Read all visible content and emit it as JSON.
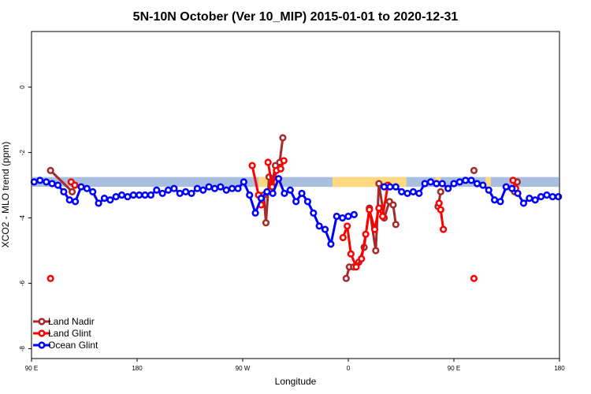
{
  "chart_data": {
    "type": "line",
    "title": "5N-10N October (Ver 10_MIP)   2015-01-01 to 2020-12-31",
    "xlabel": "Longitude",
    "ylabel": "XCO2 - MLO trend (ppm)",
    "xlim": [
      0,
      100
    ],
    "ylim": [
      -8.3,
      1.7
    ],
    "x_ticks": [
      {
        "pos": 0,
        "label": "90 E"
      },
      {
        "pos": 20,
        "label": "180"
      },
      {
        "pos": 40,
        "label": "90 W"
      },
      {
        "pos": 60,
        "label": "0"
      },
      {
        "pos": 80,
        "label": "90 E"
      },
      {
        "pos": 100,
        "label": "180"
      }
    ],
    "y_ticks": [
      0,
      -2,
      -4,
      -6,
      -8
    ],
    "grid": false,
    "legend_position": "bottom-left",
    "band": {
      "y_low": -3.05,
      "y_high": -2.75,
      "color": "#a8bfe0",
      "highlight_color": "#ffd97f",
      "highlights": [
        [
          43,
          47
        ],
        [
          57,
          71
        ],
        [
          76.5,
          77.5
        ],
        [
          86,
          87
        ]
      ]
    },
    "series": [
      {
        "name": "Land Nadir",
        "color": "#a52a2a",
        "segments": [
          [
            [
              3.6,
              -2.55
            ],
            [
              7.7,
              -3.2
            ]
          ],
          [
            [
              43.5,
              -3.4
            ],
            [
              44.0,
              -3.3
            ],
            [
              44.4,
              -4.15
            ],
            [
              45.0,
              -2.75
            ],
            [
              45.5,
              -3.0
            ],
            [
              46.2,
              -2.4
            ],
            [
              47.0,
              -2.3
            ],
            [
              47.6,
              -1.55
            ]
          ],
          [
            [
              59.6,
              -5.85
            ],
            [
              60.2,
              -5.5
            ],
            [
              61.0,
              -5.5
            ],
            [
              62.0,
              -5.35
            ],
            [
              63.0,
              -4.9
            ],
            [
              64.0,
              -3.7
            ],
            [
              65.2,
              -5.0
            ],
            [
              65.8,
              -2.95
            ],
            [
              66.8,
              -4.0
            ],
            [
              67.8,
              -3.5
            ],
            [
              68.5,
              -3.6
            ],
            [
              69.0,
              -4.2
            ]
          ],
          [
            [
              77.0,
              -3.65
            ],
            [
              77.5,
              -3.2
            ]
          ],
          [
            [
              91.5,
              -3.2
            ],
            [
              92.0,
              -2.9
            ]
          ]
        ],
        "singles": [
          [
            83.8,
            -2.55
          ]
        ]
      },
      {
        "name": "Land Glint",
        "color": "#ff0000",
        "segments": [
          [
            [
              7.5,
              -2.9
            ],
            [
              8.2,
              -3.0
            ]
          ],
          [
            [
              41.8,
              -2.4
            ],
            [
              43.0,
              -3.3
            ],
            [
              43.5,
              -3.6
            ]
          ],
          [
            [
              44.8,
              -2.3
            ],
            [
              45.6,
              -3.05
            ],
            [
              46.4,
              -2.55
            ],
            [
              47.2,
              -2.5
            ],
            [
              47.8,
              -2.25
            ]
          ],
          [
            [
              59.0,
              -4.6
            ],
            [
              59.8,
              -4.25
            ],
            [
              60.5,
              -5.1
            ],
            [
              61.5,
              -5.5
            ],
            [
              62.5,
              -5.25
            ],
            [
              63.3,
              -4.5
            ],
            [
              64.0,
              -3.75
            ],
            [
              65.0,
              -4.35
            ],
            [
              65.8,
              -3.7
            ],
            [
              66.5,
              -3.95
            ],
            [
              67.5,
              -3.0
            ]
          ],
          [
            [
              77.2,
              -3.55
            ],
            [
              77.5,
              -3.75
            ],
            [
              78.0,
              -4.35
            ]
          ],
          [
            [
              91.2,
              -2.85
            ],
            [
              91.7,
              -3.1
            ]
          ]
        ],
        "singles": [
          [
            3.6,
            -5.85
          ],
          [
            83.8,
            -5.85
          ]
        ]
      },
      {
        "name": "Ocean Glint",
        "color": "#0000ff",
        "segments": [
          [
            [
              0.5,
              -2.9
            ],
            [
              1.6,
              -2.85
            ],
            [
              2.8,
              -2.9
            ],
            [
              3.9,
              -2.95
            ],
            [
              5.0,
              -3.0
            ],
            [
              6.1,
              -3.2
            ],
            [
              7.2,
              -3.45
            ],
            [
              8.3,
              -3.5
            ],
            [
              9.4,
              -3.05
            ],
            [
              10.5,
              -3.1
            ],
            [
              11.6,
              -3.2
            ],
            [
              12.7,
              -3.55
            ],
            [
              13.8,
              -3.4
            ],
            [
              14.9,
              -3.45
            ],
            [
              16.0,
              -3.35
            ],
            [
              17.1,
              -3.3
            ],
            [
              18.2,
              -3.35
            ],
            [
              19.3,
              -3.3
            ],
            [
              20.4,
              -3.3
            ],
            [
              21.5,
              -3.3
            ],
            [
              22.6,
              -3.3
            ],
            [
              23.7,
              -3.15
            ],
            [
              24.8,
              -3.25
            ],
            [
              25.9,
              -3.15
            ],
            [
              27.0,
              -3.1
            ],
            [
              28.1,
              -3.25
            ],
            [
              29.2,
              -3.2
            ],
            [
              30.3,
              -3.25
            ],
            [
              31.4,
              -3.1
            ],
            [
              32.5,
              -3.15
            ],
            [
              33.6,
              -3.05
            ],
            [
              34.7,
              -3.1
            ],
            [
              35.8,
              -3.05
            ],
            [
              36.9,
              -3.15
            ],
            [
              38.0,
              -3.1
            ],
            [
              39.1,
              -3.1
            ],
            [
              40.2,
              -2.9
            ],
            [
              41.3,
              -3.3
            ],
            [
              42.4,
              -3.85
            ],
            [
              43.5,
              -3.4
            ],
            [
              44.6,
              -3.2
            ],
            [
              45.7,
              -3.25
            ],
            [
              46.8,
              -2.8
            ],
            [
              47.9,
              -3.25
            ],
            [
              49.0,
              -3.15
            ],
            [
              50.1,
              -3.5
            ],
            [
              51.2,
              -3.25
            ],
            [
              52.3,
              -3.5
            ],
            [
              53.4,
              -3.85
            ],
            [
              54.5,
              -4.25
            ],
            [
              55.6,
              -4.35
            ],
            [
              56.7,
              -4.8
            ],
            [
              57.8,
              -3.95
            ],
            [
              58.9,
              -4.0
            ],
            [
              60.0,
              -3.95
            ],
            [
              61.1,
              -3.9
            ]
          ],
          [
            [
              66.8,
              -3.05
            ],
            [
              67.9,
              -3.05
            ],
            [
              69.0,
              -3.05
            ],
            [
              70.1,
              -3.2
            ],
            [
              71.2,
              -3.25
            ],
            [
              72.3,
              -3.2
            ],
            [
              73.4,
              -3.25
            ],
            [
              74.5,
              -2.95
            ],
            [
              75.6,
              -2.9
            ],
            [
              76.7,
              -2.95
            ],
            [
              77.8,
              -2.95
            ],
            [
              78.9,
              -3.1
            ],
            [
              80.0,
              -2.95
            ],
            [
              81.1,
              -2.9
            ],
            [
              82.2,
              -2.85
            ],
            [
              83.3,
              -2.85
            ],
            [
              84.4,
              -2.95
            ],
            [
              85.5,
              -3.0
            ],
            [
              86.6,
              -3.15
            ],
            [
              87.7,
              -3.45
            ],
            [
              88.8,
              -3.5
            ],
            [
              89.9,
              -3.05
            ],
            [
              91.0,
              -3.1
            ],
            [
              92.1,
              -3.25
            ],
            [
              93.2,
              -3.55
            ],
            [
              94.3,
              -3.4
            ],
            [
              95.4,
              -3.45
            ],
            [
              96.5,
              -3.35
            ],
            [
              97.6,
              -3.3
            ],
            [
              98.7,
              -3.35
            ],
            [
              99.8,
              -3.35
            ]
          ]
        ],
        "singles": []
      }
    ]
  }
}
